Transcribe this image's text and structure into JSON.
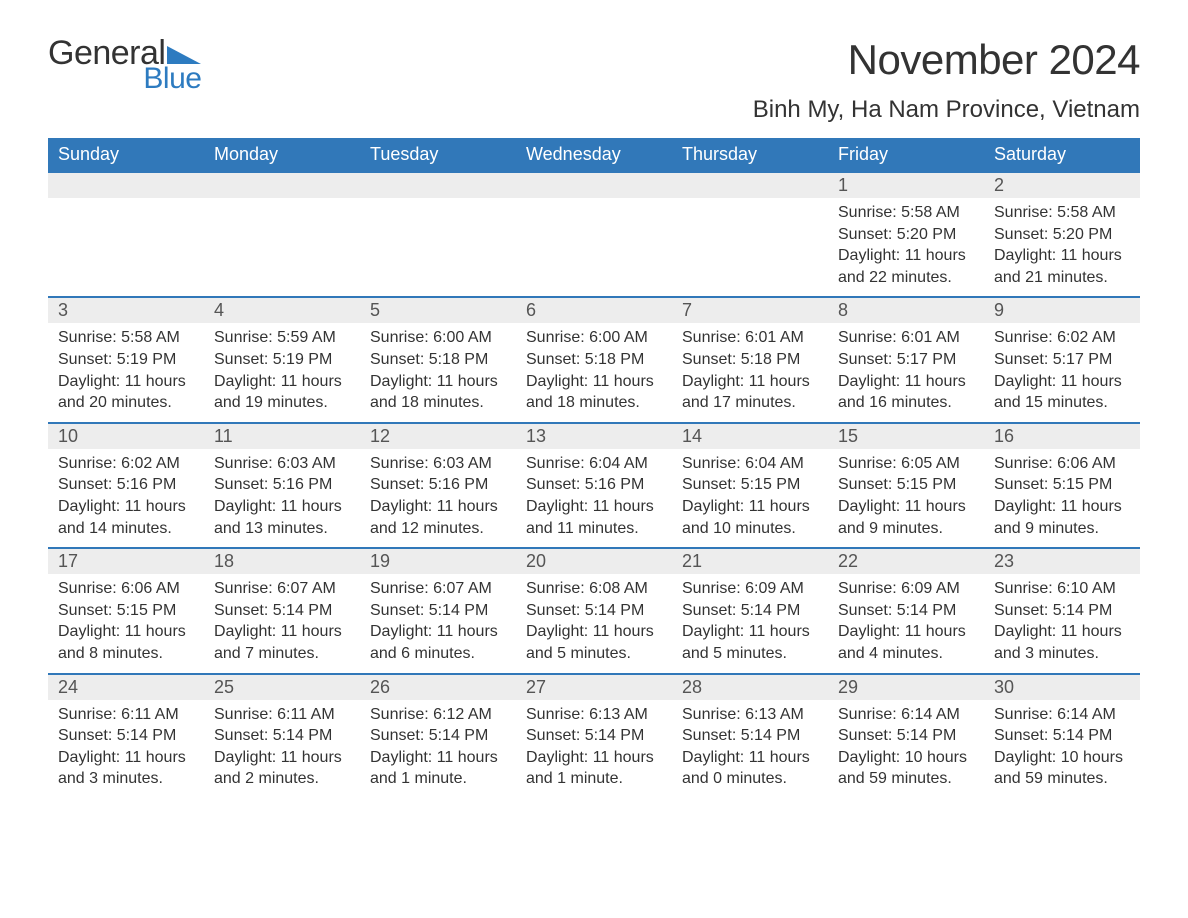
{
  "logo": {
    "general": "General",
    "blue": "Blue",
    "shape_color": "#2d7bc0",
    "text_color_dark": "#333333",
    "text_color_blue": "#2d7bc0"
  },
  "title": "November 2024",
  "location": "Binh My, Ha Nam Province, Vietnam",
  "colors": {
    "header_bg": "#3178b9",
    "header_text": "#ffffff",
    "daynum_bg": "#ededed",
    "daynum_text": "#555555",
    "body_text": "#333333",
    "row_border": "#3178b9",
    "page_bg": "#ffffff"
  },
  "day_headers": [
    "Sunday",
    "Monday",
    "Tuesday",
    "Wednesday",
    "Thursday",
    "Friday",
    "Saturday"
  ],
  "weeks": [
    [
      {
        "empty": true
      },
      {
        "empty": true
      },
      {
        "empty": true
      },
      {
        "empty": true
      },
      {
        "empty": true
      },
      {
        "day": "1",
        "sunrise": "Sunrise: 5:58 AM",
        "sunset": "Sunset: 5:20 PM",
        "daylight1": "Daylight: 11 hours",
        "daylight2": "and 22 minutes."
      },
      {
        "day": "2",
        "sunrise": "Sunrise: 5:58 AM",
        "sunset": "Sunset: 5:20 PM",
        "daylight1": "Daylight: 11 hours",
        "daylight2": "and 21 minutes."
      }
    ],
    [
      {
        "day": "3",
        "sunrise": "Sunrise: 5:58 AM",
        "sunset": "Sunset: 5:19 PM",
        "daylight1": "Daylight: 11 hours",
        "daylight2": "and 20 minutes."
      },
      {
        "day": "4",
        "sunrise": "Sunrise: 5:59 AM",
        "sunset": "Sunset: 5:19 PM",
        "daylight1": "Daylight: 11 hours",
        "daylight2": "and 19 minutes."
      },
      {
        "day": "5",
        "sunrise": "Sunrise: 6:00 AM",
        "sunset": "Sunset: 5:18 PM",
        "daylight1": "Daylight: 11 hours",
        "daylight2": "and 18 minutes."
      },
      {
        "day": "6",
        "sunrise": "Sunrise: 6:00 AM",
        "sunset": "Sunset: 5:18 PM",
        "daylight1": "Daylight: 11 hours",
        "daylight2": "and 18 minutes."
      },
      {
        "day": "7",
        "sunrise": "Sunrise: 6:01 AM",
        "sunset": "Sunset: 5:18 PM",
        "daylight1": "Daylight: 11 hours",
        "daylight2": "and 17 minutes."
      },
      {
        "day": "8",
        "sunrise": "Sunrise: 6:01 AM",
        "sunset": "Sunset: 5:17 PM",
        "daylight1": "Daylight: 11 hours",
        "daylight2": "and 16 minutes."
      },
      {
        "day": "9",
        "sunrise": "Sunrise: 6:02 AM",
        "sunset": "Sunset: 5:17 PM",
        "daylight1": "Daylight: 11 hours",
        "daylight2": "and 15 minutes."
      }
    ],
    [
      {
        "day": "10",
        "sunrise": "Sunrise: 6:02 AM",
        "sunset": "Sunset: 5:16 PM",
        "daylight1": "Daylight: 11 hours",
        "daylight2": "and 14 minutes."
      },
      {
        "day": "11",
        "sunrise": "Sunrise: 6:03 AM",
        "sunset": "Sunset: 5:16 PM",
        "daylight1": "Daylight: 11 hours",
        "daylight2": "and 13 minutes."
      },
      {
        "day": "12",
        "sunrise": "Sunrise: 6:03 AM",
        "sunset": "Sunset: 5:16 PM",
        "daylight1": "Daylight: 11 hours",
        "daylight2": "and 12 minutes."
      },
      {
        "day": "13",
        "sunrise": "Sunrise: 6:04 AM",
        "sunset": "Sunset: 5:16 PM",
        "daylight1": "Daylight: 11 hours",
        "daylight2": "and 11 minutes."
      },
      {
        "day": "14",
        "sunrise": "Sunrise: 6:04 AM",
        "sunset": "Sunset: 5:15 PM",
        "daylight1": "Daylight: 11 hours",
        "daylight2": "and 10 minutes."
      },
      {
        "day": "15",
        "sunrise": "Sunrise: 6:05 AM",
        "sunset": "Sunset: 5:15 PM",
        "daylight1": "Daylight: 11 hours",
        "daylight2": "and 9 minutes."
      },
      {
        "day": "16",
        "sunrise": "Sunrise: 6:06 AM",
        "sunset": "Sunset: 5:15 PM",
        "daylight1": "Daylight: 11 hours",
        "daylight2": "and 9 minutes."
      }
    ],
    [
      {
        "day": "17",
        "sunrise": "Sunrise: 6:06 AM",
        "sunset": "Sunset: 5:15 PM",
        "daylight1": "Daylight: 11 hours",
        "daylight2": "and 8 minutes."
      },
      {
        "day": "18",
        "sunrise": "Sunrise: 6:07 AM",
        "sunset": "Sunset: 5:14 PM",
        "daylight1": "Daylight: 11 hours",
        "daylight2": "and 7 minutes."
      },
      {
        "day": "19",
        "sunrise": "Sunrise: 6:07 AM",
        "sunset": "Sunset: 5:14 PM",
        "daylight1": "Daylight: 11 hours",
        "daylight2": "and 6 minutes."
      },
      {
        "day": "20",
        "sunrise": "Sunrise: 6:08 AM",
        "sunset": "Sunset: 5:14 PM",
        "daylight1": "Daylight: 11 hours",
        "daylight2": "and 5 minutes."
      },
      {
        "day": "21",
        "sunrise": "Sunrise: 6:09 AM",
        "sunset": "Sunset: 5:14 PM",
        "daylight1": "Daylight: 11 hours",
        "daylight2": "and 5 minutes."
      },
      {
        "day": "22",
        "sunrise": "Sunrise: 6:09 AM",
        "sunset": "Sunset: 5:14 PM",
        "daylight1": "Daylight: 11 hours",
        "daylight2": "and 4 minutes."
      },
      {
        "day": "23",
        "sunrise": "Sunrise: 6:10 AM",
        "sunset": "Sunset: 5:14 PM",
        "daylight1": "Daylight: 11 hours",
        "daylight2": "and 3 minutes."
      }
    ],
    [
      {
        "day": "24",
        "sunrise": "Sunrise: 6:11 AM",
        "sunset": "Sunset: 5:14 PM",
        "daylight1": "Daylight: 11 hours",
        "daylight2": "and 3 minutes."
      },
      {
        "day": "25",
        "sunrise": "Sunrise: 6:11 AM",
        "sunset": "Sunset: 5:14 PM",
        "daylight1": "Daylight: 11 hours",
        "daylight2": "and 2 minutes."
      },
      {
        "day": "26",
        "sunrise": "Sunrise: 6:12 AM",
        "sunset": "Sunset: 5:14 PM",
        "daylight1": "Daylight: 11 hours",
        "daylight2": "and 1 minute."
      },
      {
        "day": "27",
        "sunrise": "Sunrise: 6:13 AM",
        "sunset": "Sunset: 5:14 PM",
        "daylight1": "Daylight: 11 hours",
        "daylight2": "and 1 minute."
      },
      {
        "day": "28",
        "sunrise": "Sunrise: 6:13 AM",
        "sunset": "Sunset: 5:14 PM",
        "daylight1": "Daylight: 11 hours",
        "daylight2": "and 0 minutes."
      },
      {
        "day": "29",
        "sunrise": "Sunrise: 6:14 AM",
        "sunset": "Sunset: 5:14 PM",
        "daylight1": "Daylight: 10 hours",
        "daylight2": "and 59 minutes."
      },
      {
        "day": "30",
        "sunrise": "Sunrise: 6:14 AM",
        "sunset": "Sunset: 5:14 PM",
        "daylight1": "Daylight: 10 hours",
        "daylight2": "and 59 minutes."
      }
    ]
  ]
}
